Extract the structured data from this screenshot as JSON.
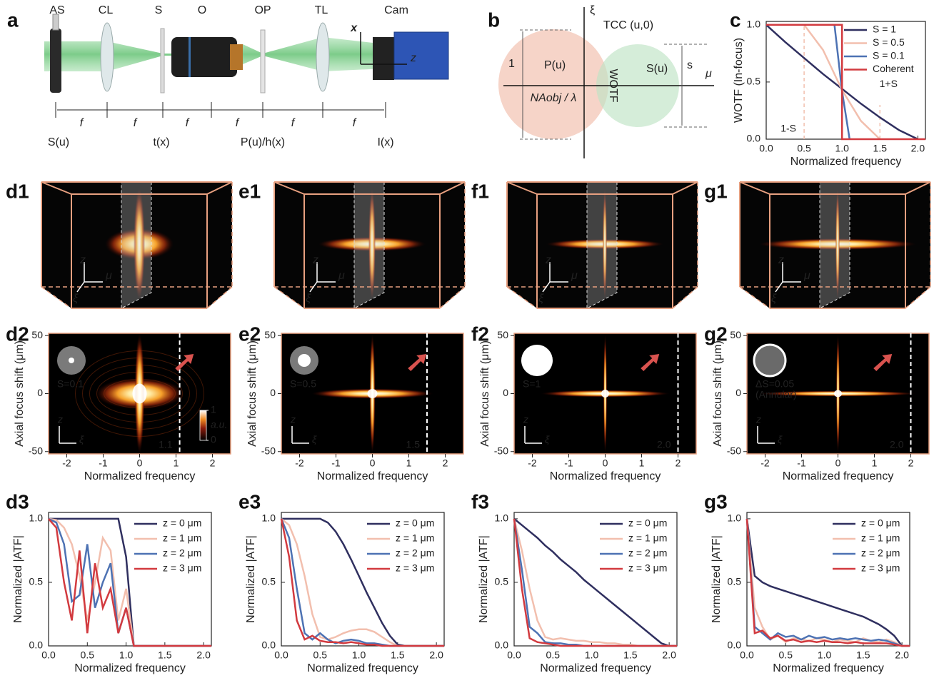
{
  "labels": [
    "a",
    "b",
    "c",
    "d1",
    "e1",
    "f1",
    "g1",
    "d2",
    "e2",
    "f2",
    "g2",
    "d3",
    "e3",
    "f3",
    "g3"
  ],
  "setup": {
    "components": [
      "AS",
      "CL",
      "S",
      "O",
      "OP",
      "TL",
      "Cam"
    ],
    "spacing": [
      "f",
      "f",
      "f",
      "f",
      "f",
      "f"
    ],
    "planes": [
      "S(u)",
      "t(x)",
      "P(u)/h(x)",
      "I(x)"
    ],
    "axes": [
      "x",
      "z"
    ]
  },
  "diagram": {
    "xi": "ξ",
    "title": "TCC (u,0)",
    "height": "1",
    "pupil": "P(u)",
    "overlap": "WOTF",
    "source": "S(u)",
    "source_size": "s",
    "mu": "μ",
    "radius": "NAobj / λ"
  },
  "volumes": [
    {
      "axes": [
        "z",
        "μ",
        "ξ"
      ]
    },
    {
      "axes": [
        "z",
        "μ",
        "ξ"
      ]
    },
    {
      "axes": [
        "z",
        "μ",
        "ξ"
      ]
    },
    {
      "axes": [
        "z",
        "μ",
        "ξ"
      ]
    }
  ],
  "chart_data": [
    {
      "type": "line",
      "xlabel": "Normalized frequency",
      "ylabel": "WOTF (In-focus)",
      "xlim": [
        0,
        2.1
      ],
      "ylim": [
        0,
        1.03
      ],
      "xticks": [
        {
          "value": 0,
          "label": "0.0"
        },
        0.5,
        {
          "value": 1,
          "label": "1.0"
        },
        1.5,
        {
          "value": 2,
          "label": "2.0"
        }
      ],
      "yticks": [
        {
          "value": 0,
          "label": "0.0"
        },
        0.5,
        {
          "value": 1,
          "label": "1.0"
        }
      ],
      "legend": "upper right",
      "series": [
        {
          "name": "S = 1",
          "color": "#2f2f5f",
          "x": [
            0,
            0.25,
            0.5,
            0.75,
            1,
            1.25,
            1.5,
            1.75,
            2
          ],
          "values": [
            1,
            0.85,
            0.71,
            0.57,
            0.44,
            0.31,
            0.19,
            0.08,
            0
          ]
        },
        {
          "name": "S = 0.5",
          "color": "#f2bfae",
          "x": [
            0,
            0.5,
            0.75,
            1,
            1.25,
            1.5
          ],
          "values": [
            1,
            1,
            0.78,
            0.43,
            0.16,
            0
          ]
        },
        {
          "name": "S = 0.1",
          "color": "#4d72b3",
          "x": [
            0,
            0.9,
            1,
            1.1
          ],
          "values": [
            1,
            1,
            0.42,
            0
          ]
        },
        {
          "name": "Coherent",
          "color": "#d23a3f",
          "x": [
            0,
            1,
            1,
            2.1
          ],
          "values": [
            1,
            1,
            0,
            0
          ]
        }
      ],
      "guides": [
        {
          "x": 0.5,
          "y": 1,
          "label": "1-S"
        },
        {
          "x": 1.5,
          "y": 0.3,
          "label": "1+S"
        }
      ]
    },
    {
      "type": "heatmap",
      "xlabel": "Normalized frequency",
      "ylabel": "Axial focus shift (μm)",
      "xlim": [
        -2.5,
        2.5
      ],
      "ylim": [
        -52,
        52
      ],
      "xticks": [
        -2,
        -1,
        0,
        1,
        2
      ],
      "yticks": [
        -50,
        0,
        50
      ],
      "source_label": [
        "S=0.1"
      ],
      "cutoff": {
        "value": 1.1,
        "label": "1.1"
      },
      "axes": [
        "z",
        "ξ"
      ],
      "colorbar": {
        "ticks": [
          0,
          1
        ],
        "label": "a.u."
      }
    },
    {
      "type": "heatmap",
      "xlabel": "Normalized frequency",
      "ylabel": "Axial focus shift (μm)",
      "xlim": [
        -2.5,
        2.5
      ],
      "ylim": [
        -52,
        52
      ],
      "xticks": [
        -2,
        -1,
        0,
        1,
        2
      ],
      "yticks": [
        -50,
        0,
        50
      ],
      "source_label": [
        "S=0.5"
      ],
      "cutoff": {
        "value": 1.5,
        "label": "1.5"
      },
      "axes": [
        "z",
        "ξ"
      ]
    },
    {
      "type": "heatmap",
      "xlabel": "Normalized frequency",
      "ylabel": "Axial focus shift (μm)",
      "xlim": [
        -2.5,
        2.5
      ],
      "ylim": [
        -52,
        52
      ],
      "xticks": [
        -2,
        -1,
        0,
        1,
        2
      ],
      "yticks": [
        -50,
        0,
        50
      ],
      "source_label": [
        "S=1"
      ],
      "cutoff": {
        "value": 2,
        "label": "2.0"
      },
      "axes": [
        "z",
        "ξ"
      ]
    },
    {
      "type": "heatmap",
      "xlabel": "Normalized frequency",
      "ylabel": "Axial focus shift (μm)",
      "xlim": [
        -2.5,
        2.5
      ],
      "ylim": [
        -52,
        52
      ],
      "xticks": [
        -2,
        -1,
        0,
        1,
        2
      ],
      "yticks": [
        -50,
        0,
        50
      ],
      "source_label": [
        "ΔS=0.05",
        "(Annular)"
      ],
      "cutoff": {
        "value": 2,
        "label": "2.0"
      },
      "axes": [
        "z",
        "ξ"
      ]
    },
    {
      "type": "line",
      "xlabel": "Normalized frequency",
      "ylabel": "Normalized |ATF|",
      "xlim": [
        0,
        2.1
      ],
      "ylim": [
        0,
        1.05
      ],
      "xticks": [
        {
          "value": 0,
          "label": "0.0"
        },
        0.5,
        {
          "value": 1,
          "label": "1.0"
        },
        1.5,
        {
          "value": 2,
          "label": "2.0"
        }
      ],
      "yticks": [
        {
          "value": 0,
          "label": "0.0"
        },
        0.5,
        {
          "value": 1,
          "label": "1.0"
        }
      ],
      "legend": "upper right",
      "x": [
        0,
        0.1,
        0.2,
        0.3,
        0.4,
        0.5,
        0.6,
        0.7,
        0.8,
        0.9,
        1,
        1.1,
        1.2,
        1.3,
        1.4,
        1.5,
        1.6,
        1.7,
        1.8,
        1.9,
        2,
        2.1
      ],
      "series": [
        {
          "name": "z = 0 μm",
          "color": "#2f2f5f",
          "values": [
            1,
            1,
            1,
            1,
            1,
            1,
            1,
            1,
            1,
            1,
            0.7,
            0,
            0,
            0,
            0,
            0,
            0,
            0,
            0,
            0,
            0,
            0
          ]
        },
        {
          "name": "z = 1 μm",
          "color": "#f2bfae",
          "values": [
            1,
            0.99,
            0.93,
            0.8,
            0.55,
            0.2,
            0.5,
            0.85,
            0.75,
            0.2,
            0.45,
            0,
            0,
            0,
            0,
            0,
            0,
            0,
            0,
            0,
            0,
            0
          ]
        },
        {
          "name": "z = 2 μm",
          "color": "#4d72b3",
          "values": [
            1,
            0.97,
            0.8,
            0.35,
            0.4,
            0.8,
            0.3,
            0.5,
            0.65,
            0.1,
            0.3,
            0,
            0,
            0,
            0,
            0,
            0,
            0,
            0,
            0,
            0,
            0
          ]
        },
        {
          "name": "z = 3 μm",
          "color": "#d23a3f",
          "values": [
            1,
            0.93,
            0.5,
            0.2,
            0.75,
            0.1,
            0.65,
            0.3,
            0.45,
            0.1,
            0.3,
            0,
            0,
            0,
            0,
            0,
            0,
            0,
            0,
            0,
            0,
            0
          ]
        }
      ]
    },
    {
      "type": "line",
      "xlabel": "Normalized frequency",
      "ylabel": "Normalized |ATF|",
      "xlim": [
        0,
        2.1
      ],
      "ylim": [
        0,
        1.05
      ],
      "xticks": [
        {
          "value": 0,
          "label": "0.0"
        },
        0.5,
        {
          "value": 1,
          "label": "1.0"
        },
        1.5,
        {
          "value": 2,
          "label": "2.0"
        }
      ],
      "yticks": [
        {
          "value": 0,
          "label": "0.0"
        },
        0.5,
        {
          "value": 1,
          "label": "1.0"
        }
      ],
      "legend": "upper right",
      "x": [
        0,
        0.1,
        0.2,
        0.3,
        0.4,
        0.5,
        0.6,
        0.7,
        0.8,
        0.9,
        1,
        1.1,
        1.2,
        1.3,
        1.4,
        1.5,
        1.6,
        1.7,
        1.8,
        1.9,
        2,
        2.1
      ],
      "series": [
        {
          "name": "z = 0 μm",
          "color": "#2f2f5f",
          "values": [
            1,
            1,
            1,
            1,
            1,
            1,
            0.97,
            0.9,
            0.8,
            0.68,
            0.55,
            0.42,
            0.3,
            0.18,
            0.08,
            0.01,
            0,
            0,
            0,
            0,
            0,
            0
          ]
        },
        {
          "name": "z = 1 μm",
          "color": "#f2bfae",
          "values": [
            1,
            0.95,
            0.8,
            0.55,
            0.25,
            0.07,
            0.05,
            0.07,
            0.1,
            0.12,
            0.13,
            0.13,
            0.11,
            0.07,
            0.03,
            0,
            0,
            0,
            0,
            0,
            0,
            0
          ]
        },
        {
          "name": "z = 2 μm",
          "color": "#4d72b3",
          "values": [
            1,
            0.85,
            0.45,
            0.1,
            0.05,
            0.1,
            0.05,
            0.02,
            0.04,
            0.05,
            0.04,
            0.02,
            0.02,
            0.01,
            0,
            0,
            0,
            0,
            0,
            0,
            0,
            0
          ]
        },
        {
          "name": "z = 3 μm",
          "color": "#d23a3f",
          "values": [
            1,
            0.7,
            0.2,
            0.05,
            0.08,
            0.04,
            0.03,
            0.03,
            0.02,
            0.03,
            0.02,
            0.01,
            0.01,
            0,
            0,
            0,
            0,
            0,
            0,
            0,
            0,
            0
          ]
        }
      ]
    },
    {
      "type": "line",
      "xlabel": "Normalized frequency",
      "ylabel": "Normalized |ATF|",
      "xlim": [
        0,
        2.1
      ],
      "ylim": [
        0,
        1.05
      ],
      "xticks": [
        {
          "value": 0,
          "label": "0.0"
        },
        0.5,
        {
          "value": 1,
          "label": "1.0"
        },
        1.5,
        {
          "value": 2,
          "label": "2.0"
        }
      ],
      "yticks": [
        {
          "value": 0,
          "label": "0.0"
        },
        0.5,
        {
          "value": 1,
          "label": "1.0"
        }
      ],
      "legend": "upper right",
      "x": [
        0,
        0.1,
        0.2,
        0.3,
        0.4,
        0.5,
        0.6,
        0.7,
        0.8,
        0.9,
        1,
        1.1,
        1.2,
        1.3,
        1.4,
        1.5,
        1.6,
        1.7,
        1.8,
        1.9,
        2,
        2.1
      ],
      "series": [
        {
          "name": "z = 0 μm",
          "color": "#2f2f5f",
          "values": [
            1,
            0.95,
            0.9,
            0.85,
            0.79,
            0.74,
            0.68,
            0.63,
            0.58,
            0.52,
            0.47,
            0.42,
            0.37,
            0.32,
            0.27,
            0.22,
            0.17,
            0.12,
            0.07,
            0.02,
            0,
            0
          ]
        },
        {
          "name": "z = 1 μm",
          "color": "#f2bfae",
          "values": [
            1,
            0.75,
            0.45,
            0.2,
            0.07,
            0.05,
            0.06,
            0.05,
            0.04,
            0.04,
            0.03,
            0.03,
            0.02,
            0.02,
            0.01,
            0.01,
            0,
            0,
            0,
            0,
            0,
            0
          ]
        },
        {
          "name": "z = 2 μm",
          "color": "#4d72b3",
          "values": [
            1,
            0.6,
            0.15,
            0.1,
            0.03,
            0.02,
            0.02,
            0.01,
            0.01,
            0,
            0,
            0,
            0,
            0,
            0,
            0,
            0,
            0,
            0,
            0,
            0,
            0
          ]
        },
        {
          "name": "z = 3 μm",
          "color": "#d23a3f",
          "values": [
            1,
            0.45,
            0.06,
            0.03,
            0.02,
            0.01,
            0,
            0,
            0,
            0,
            0,
            0,
            0,
            0,
            0,
            0,
            0,
            0,
            0,
            0,
            0,
            0
          ]
        }
      ]
    },
    {
      "type": "line",
      "xlabel": "Normalized frequency",
      "ylabel": "Normalized |ATF|",
      "xlim": [
        0,
        2.1
      ],
      "ylim": [
        0,
        1.05
      ],
      "xticks": [
        {
          "value": 0,
          "label": "0.0"
        },
        0.5,
        {
          "value": 1,
          "label": "1.0"
        },
        1.5,
        {
          "value": 2,
          "label": "2.0"
        }
      ],
      "yticks": [
        {
          "value": 0,
          "label": "0.0"
        },
        0.5,
        {
          "value": 1,
          "label": "1.0"
        }
      ],
      "legend": "upper right",
      "x": [
        0,
        0.1,
        0.2,
        0.3,
        0.4,
        0.5,
        0.6,
        0.7,
        0.8,
        0.9,
        1,
        1.1,
        1.2,
        1.3,
        1.4,
        1.5,
        1.6,
        1.7,
        1.8,
        1.9,
        2,
        2.1
      ],
      "series": [
        {
          "name": "z = 0 μm",
          "color": "#2f2f5f",
          "values": [
            1,
            0.55,
            0.5,
            0.47,
            0.45,
            0.43,
            0.41,
            0.39,
            0.37,
            0.35,
            0.33,
            0.31,
            0.29,
            0.27,
            0.25,
            0.23,
            0.2,
            0.17,
            0.13,
            0.08,
            0,
            0
          ]
        },
        {
          "name": "z = 1 μm",
          "color": "#f2bfae",
          "values": [
            1,
            0.3,
            0.15,
            0.05,
            0.08,
            0.03,
            0.06,
            0.05,
            0.04,
            0.06,
            0.05,
            0.03,
            0.05,
            0.04,
            0.03,
            0.06,
            0.04,
            0.03,
            0.05,
            0.03,
            0,
            0
          ]
        },
        {
          "name": "z = 2 μm",
          "color": "#4d72b3",
          "values": [
            1,
            0.15,
            0.1,
            0.05,
            0.1,
            0.07,
            0.08,
            0.05,
            0.08,
            0.06,
            0.07,
            0.05,
            0.06,
            0.05,
            0.06,
            0.05,
            0.04,
            0.05,
            0.04,
            0.02,
            0,
            0
          ]
        },
        {
          "name": "z = 3 μm",
          "color": "#d23a3f",
          "values": [
            1,
            0.1,
            0.12,
            0.06,
            0.08,
            0.04,
            0.05,
            0.03,
            0.04,
            0.03,
            0.04,
            0.03,
            0.03,
            0.02,
            0.03,
            0.02,
            0.02,
            0.02,
            0.02,
            0.01,
            0,
            0
          ]
        }
      ]
    }
  ]
}
